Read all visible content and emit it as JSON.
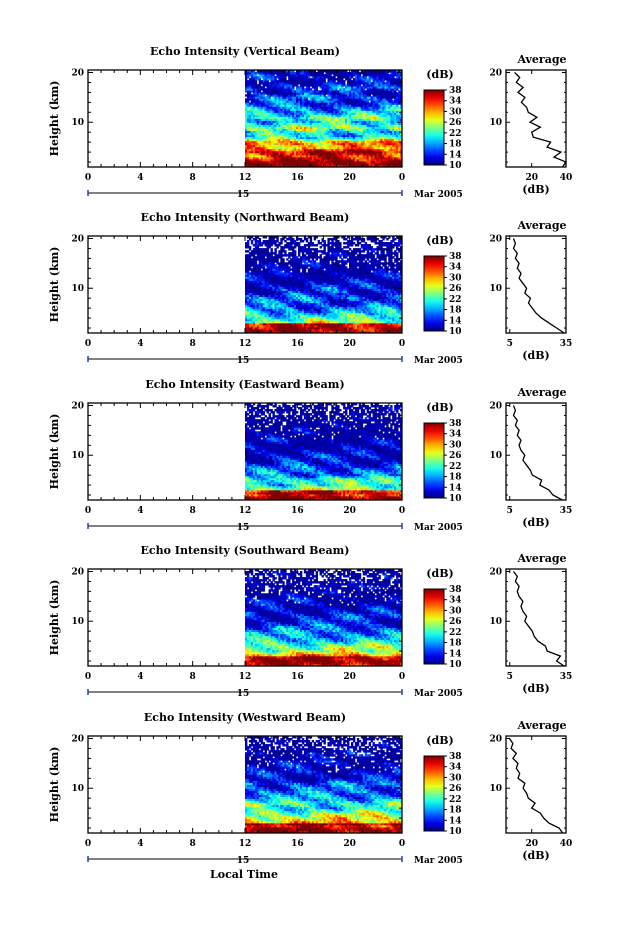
{
  "figure": {
    "xlabel": "Local Time",
    "date_label": "Mar 2005",
    "day_label": "15"
  },
  "chart_data": [
    {
      "type": "heatmap",
      "title": "Echo Intensity (Vertical Beam)",
      "xlabel": "",
      "ylabel": "Height (km)",
      "x_ticks": [
        "0",
        "4",
        "8",
        "12",
        "16",
        "20",
        "0"
      ],
      "y_ticks": [
        "10",
        "20"
      ],
      "x_range": [
        0,
        24
      ],
      "y_range": [
        1,
        20.5
      ],
      "data_start_hour": 12,
      "colorbar": {
        "label": "(dB)",
        "ticks": [
          "10",
          "14",
          "18",
          "22",
          "26",
          "30",
          "34",
          "38"
        ],
        "range": [
          10,
          38
        ]
      },
      "profile": {
        "title": "Average",
        "xlabel": "(dB)",
        "x_ticks": [
          "20",
          "40"
        ],
        "x_range": [
          5,
          40
        ],
        "y_ticks": [
          "10",
          "20"
        ],
        "heights": [
          1,
          2,
          3,
          4,
          5,
          6,
          7,
          8,
          9,
          10,
          11,
          12,
          13,
          14,
          15,
          16,
          17,
          18,
          19,
          20
        ],
        "values": [
          38,
          40,
          33,
          37,
          29,
          31,
          21,
          20,
          25,
          19,
          23,
          18,
          17,
          14,
          16,
          12,
          15,
          11,
          13,
          10
        ]
      }
    },
    {
      "type": "heatmap",
      "title": "Echo Intensity (Northward Beam)",
      "xlabel": "",
      "ylabel": "Height (km)",
      "x_ticks": [
        "0",
        "4",
        "8",
        "12",
        "16",
        "20",
        "0"
      ],
      "y_ticks": [
        "10",
        "20"
      ],
      "x_range": [
        0,
        24
      ],
      "y_range": [
        1,
        20.5
      ],
      "data_start_hour": 12,
      "colorbar": {
        "label": "(dB)",
        "ticks": [
          "10",
          "14",
          "18",
          "22",
          "26",
          "30",
          "34",
          "38"
        ],
        "range": [
          10,
          38
        ]
      },
      "profile": {
        "title": "Average",
        "xlabel": "(dB)",
        "x_ticks": [
          "5",
          "35"
        ],
        "x_range": [
          3,
          35
        ],
        "y_ticks": [
          "10",
          "20"
        ],
        "heights": [
          1,
          2,
          3,
          4,
          5,
          6,
          7,
          8,
          9,
          10,
          11,
          12,
          13,
          14,
          15,
          16,
          17,
          18,
          19,
          20
        ],
        "values": [
          34,
          30,
          26,
          22,
          19,
          17,
          15,
          16,
          13,
          14,
          12,
          10,
          11,
          9,
          10,
          8,
          9,
          7,
          8,
          7
        ]
      }
    },
    {
      "type": "heatmap",
      "title": "Echo Intensity (Eastward Beam)",
      "xlabel": "",
      "ylabel": "Height (km)",
      "x_ticks": [
        "0",
        "4",
        "8",
        "12",
        "16",
        "20",
        "0"
      ],
      "y_ticks": [
        "10",
        "20"
      ],
      "x_range": [
        0,
        24
      ],
      "y_range": [
        1,
        20.5
      ],
      "data_start_hour": 12,
      "colorbar": {
        "label": "(dB)",
        "ticks": [
          "10",
          "14",
          "18",
          "22",
          "26",
          "30",
          "34",
          "38"
        ],
        "range": [
          10,
          38
        ]
      },
      "profile": {
        "title": "Average",
        "xlabel": "(dB)",
        "x_ticks": [
          "5",
          "35"
        ],
        "x_range": [
          3,
          35
        ],
        "y_ticks": [
          "10",
          "20"
        ],
        "heights": [
          1,
          2,
          3,
          4,
          5,
          6,
          7,
          8,
          9,
          10,
          11,
          12,
          13,
          14,
          15,
          16,
          17,
          18,
          19,
          20
        ],
        "values": [
          33,
          28,
          26,
          21,
          22,
          17,
          16,
          14,
          12,
          13,
          11,
          10,
          11,
          9,
          10,
          8,
          9,
          7,
          8,
          7
        ]
      }
    },
    {
      "type": "heatmap",
      "title": "Echo Intensity (Southward Beam)",
      "xlabel": "",
      "ylabel": "Height (km)",
      "x_ticks": [
        "0",
        "4",
        "8",
        "12",
        "16",
        "20",
        "0"
      ],
      "y_ticks": [
        "10",
        "20"
      ],
      "x_range": [
        0,
        24
      ],
      "y_range": [
        1,
        20.5
      ],
      "data_start_hour": 12,
      "colorbar": {
        "label": "(dB)",
        "ticks": [
          "10",
          "14",
          "18",
          "22",
          "26",
          "30",
          "34",
          "38"
        ],
        "range": [
          10,
          38
        ]
      },
      "profile": {
        "title": "Average",
        "xlabel": "(dB)",
        "x_ticks": [
          "5",
          "35"
        ],
        "x_range": [
          3,
          35
        ],
        "y_ticks": [
          "10",
          "20"
        ],
        "heights": [
          1,
          2,
          3,
          4,
          5,
          6,
          7,
          8,
          9,
          10,
          11,
          12,
          13,
          14,
          15,
          16,
          17,
          18,
          19,
          20
        ],
        "values": [
          34,
          30,
          32,
          25,
          24,
          20,
          18,
          17,
          15,
          13,
          14,
          12,
          11,
          12,
          10,
          9,
          10,
          8,
          9,
          7
        ]
      }
    },
    {
      "type": "heatmap",
      "title": "Echo Intensity (Westward Beam)",
      "xlabel": "",
      "ylabel": "Height (km)",
      "x_ticks": [
        "0",
        "4",
        "8",
        "12",
        "16",
        "20",
        "0"
      ],
      "y_ticks": [
        "10",
        "20"
      ],
      "x_range": [
        0,
        24
      ],
      "y_range": [
        1,
        20.5
      ],
      "data_start_hour": 12,
      "colorbar": {
        "label": "(dB)",
        "ticks": [
          "10",
          "14",
          "18",
          "22",
          "26",
          "30",
          "34",
          "38"
        ],
        "range": [
          10,
          38
        ]
      },
      "profile": {
        "title": "Average",
        "xlabel": "(dB)",
        "x_ticks": [
          "20",
          "40"
        ],
        "x_range": [
          5,
          40
        ],
        "y_ticks": [
          "10",
          "20"
        ],
        "heights": [
          1,
          2,
          3,
          4,
          5,
          6,
          7,
          8,
          9,
          10,
          11,
          12,
          13,
          14,
          15,
          16,
          17,
          18,
          19,
          20
        ],
        "values": [
          38,
          36,
          30,
          27,
          25,
          20,
          22,
          18,
          17,
          15,
          16,
          12,
          13,
          11,
          12,
          9,
          11,
          8,
          9,
          7
        ]
      }
    }
  ]
}
